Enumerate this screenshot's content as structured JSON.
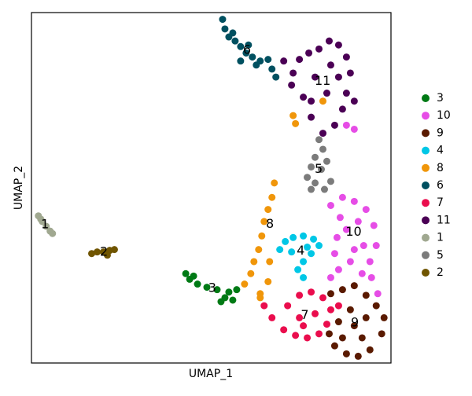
{
  "chart_data": {
    "type": "scatter",
    "x_label": "UMAP_1",
    "y_label": "UMAP_2",
    "series": [
      {
        "name": "3",
        "color": "#007a15",
        "x": [
          19.5,
          20,
          21,
          22.2,
          23.5,
          24.5,
          25.5,
          25,
          26,
          24,
          20.5
        ],
        "y": [
          11.7,
          11,
          10.4,
          10,
          9.7,
          8.7,
          8.4,
          9.4,
          9.7,
          8.2,
          11.4
        ]
      },
      {
        "name": "10",
        "color": "#e64de6",
        "x": [
          40,
          41,
          38,
          39.5,
          41,
          42.5,
          43.5,
          43.8,
          43,
          43.2,
          44,
          42,
          40.5,
          39,
          38,
          38.8,
          40,
          41.5,
          42.2,
          39.2,
          41,
          38.5
        ],
        "y": [
          30.2,
          29.7,
          20.2,
          21.2,
          20.7,
          19.7,
          17.7,
          15.2,
          13.2,
          11.2,
          9.2,
          11.7,
          13.2,
          12.2,
          11.2,
          16.2,
          17.2,
          18.2,
          15.2,
          18.7,
          14.7,
          14.2
        ]
      },
      {
        "name": "9",
        "color": "#5a1a00",
        "x": [
          38,
          39.5,
          41,
          42.5,
          43.8,
          44.8,
          44.5,
          43,
          41.5,
          40,
          38.5,
          37.8,
          39,
          41,
          42.5,
          40.5,
          39.5,
          42
        ],
        "y": [
          9.2,
          9.7,
          10.2,
          9,
          7.7,
          6.2,
          4.2,
          2.2,
          1.4,
          1.7,
          2.7,
          4.2,
          5.7,
          5.2,
          6.2,
          7.2,
          3.7,
          3.7
        ]
      },
      {
        "name": "4",
        "color": "#00c7e6",
        "x": [
          32.2,
          33.2,
          34.5,
          35.8,
          36.5,
          35.5,
          34.5,
          33.8,
          34.5,
          33,
          35,
          31.5
        ],
        "y": [
          15.7,
          16.2,
          16.4,
          16,
          15.2,
          14.2,
          13.2,
          12.2,
          11.2,
          14.4,
          15,
          14.7
        ]
      },
      {
        "name": "8",
        "color": "#f0960a",
        "x": [
          30.8,
          30.5,
          30,
          29.5,
          29.2,
          28.8,
          28.2,
          27.8,
          27,
          29,
          30,
          30.2,
          29,
          33.2,
          33.5,
          37
        ],
        "y": [
          23,
          21.2,
          19.7,
          18.2,
          16.4,
          14.7,
          13.2,
          11.7,
          10.4,
          9.2,
          10.7,
          13.2,
          8.7,
          31.4,
          30.4,
          33.2
        ]
      },
      {
        "name": "6",
        "color": "#005060",
        "x": [
          24.2,
          24.5,
          25,
          25.8,
          26.5,
          27.2,
          28,
          29,
          30,
          30.5,
          31,
          25.5,
          27.5,
          28.5,
          26.5
        ],
        "y": [
          43.4,
          42.2,
          41.2,
          40.7,
          40,
          39.2,
          38.7,
          38.2,
          38.4,
          37.2,
          36.2,
          41.7,
          40.2,
          37.7,
          38.2
        ]
      },
      {
        "name": "7",
        "color": "#ea0d4d",
        "x": [
          29.5,
          30.5,
          32,
          33.5,
          35,
          36.5,
          37.5,
          38,
          37,
          35.5,
          34,
          32.5,
          34,
          36,
          39,
          34.5
        ],
        "y": [
          7.7,
          6.2,
          4.7,
          4,
          3.7,
          4.2,
          5.4,
          7.2,
          8.7,
          9.4,
          9,
          7.7,
          6.2,
          6.7,
          7.7,
          5.2
        ]
      },
      {
        "name": "11",
        "color": "#4b0055",
        "x": [
          32,
          33.2,
          34,
          35.2,
          36.5,
          37.8,
          39,
          40,
          40.5,
          40,
          39.5,
          38.5,
          37,
          35.5,
          34.5,
          33,
          36,
          37.5,
          39,
          41,
          38,
          35.5
        ],
        "y": [
          38.2,
          36.7,
          38.4,
          39.2,
          39.7,
          40.7,
          40.2,
          38.7,
          36.7,
          34.2,
          32.2,
          30.2,
          29.2,
          31.2,
          33.7,
          35.2,
          36.2,
          34.2,
          36.2,
          33.2,
          37.7,
          33.2
        ]
      },
      {
        "name": "1",
        "color": "#a0a890",
        "x": [
          0.7,
          1.2,
          1.7,
          2.2,
          2.5,
          1
        ],
        "y": [
          18.9,
          18.2,
          17.6,
          17,
          16.7,
          18.5
        ]
      },
      {
        "name": "5",
        "color": "#7b7b7b",
        "x": [
          36.5,
          37,
          36,
          35.5,
          35,
          36,
          37.2,
          38,
          36.8,
          35.5,
          37.5
        ],
        "y": [
          28.4,
          27.2,
          26.2,
          25,
          23.7,
          23,
          22.2,
          23.2,
          24.7,
          22.2,
          25.7
        ]
      },
      {
        "name": "2",
        "color": "#705500",
        "x": [
          7.5,
          8.2,
          9,
          9.8,
          10.4,
          9.5
        ],
        "y": [
          14.2,
          14.4,
          14.4,
          14.6,
          14.7,
          14
        ]
      }
    ]
  }
}
